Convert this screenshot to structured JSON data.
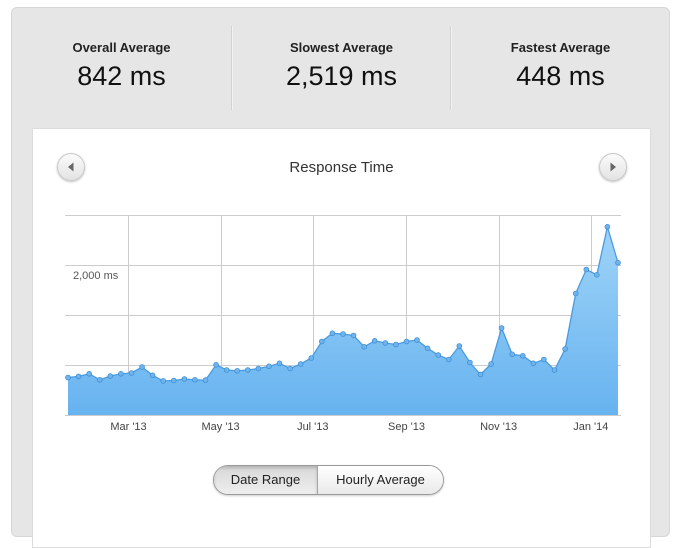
{
  "stats": [
    {
      "label": "Overall Average",
      "value": "842 ms"
    },
    {
      "label": "Slowest Average",
      "value": "2,519 ms"
    },
    {
      "label": "Fastest Average",
      "value": "448 ms"
    }
  ],
  "chart": {
    "prev_icon": "chevron-left-icon",
    "next_icon": "chevron-right-icon"
  },
  "toggle": {
    "options": [
      "Date Range",
      "Hourly Average"
    ],
    "selected": "Date Range"
  },
  "colors": {
    "fill_top": "#9fd3f7",
    "fill_bottom": "#67b3f0",
    "line": "#4a9be0",
    "grid": "#cccccc"
  },
  "chart_data": {
    "type": "area",
    "title": "Response Time",
    "ylabel": "",
    "xlabel": "",
    "y_tick_labels": [
      "2,000 ms"
    ],
    "ylim": [
      0,
      2667
    ],
    "y_gridlines": [
      0,
      667,
      1333,
      2000,
      2667
    ],
    "x_tick_labels": [
      "Mar '13",
      "May '13",
      "Jul '13",
      "Sep '13",
      "Nov '13",
      "Jan '14"
    ],
    "x_tick_dates": [
      "2013-03-01",
      "2013-05-01",
      "2013-07-01",
      "2013-09-01",
      "2013-11-01",
      "2014-01-01"
    ],
    "grid": true,
    "legend": "none",
    "series": [
      {
        "x": [
          "2013-01-20",
          "2013-01-27",
          "2013-02-03",
          "2013-02-10",
          "2013-02-17",
          "2013-02-24",
          "2013-03-03",
          "2013-03-10",
          "2013-03-17",
          "2013-03-24",
          "2013-03-31",
          "2013-04-07",
          "2013-04-14",
          "2013-04-21",
          "2013-04-28",
          "2013-05-05",
          "2013-05-12",
          "2013-05-19",
          "2013-05-26",
          "2013-06-02",
          "2013-06-09",
          "2013-06-16",
          "2013-06-23",
          "2013-06-30",
          "2013-07-07",
          "2013-07-14",
          "2013-07-21",
          "2013-07-28",
          "2013-08-04",
          "2013-08-11",
          "2013-08-18",
          "2013-08-25",
          "2013-09-01",
          "2013-09-08",
          "2013-09-15",
          "2013-09-22",
          "2013-09-29",
          "2013-10-06",
          "2013-10-13",
          "2013-10-20",
          "2013-10-27",
          "2013-11-03",
          "2013-11-10",
          "2013-11-17",
          "2013-11-24",
          "2013-12-01",
          "2013-12-08",
          "2013-12-15",
          "2013-12-22",
          "2013-12-29",
          "2014-01-05",
          "2014-01-12",
          "2014-01-19"
        ],
        "values": [
          500,
          515,
          550,
          470,
          520,
          550,
          560,
          640,
          530,
          455,
          460,
          480,
          470,
          465,
          670,
          600,
          590,
          600,
          620,
          650,
          690,
          620,
          680,
          760,
          980,
          1090,
          1080,
          1060,
          910,
          990,
          960,
          940,
          980,
          1000,
          890,
          800,
          740,
          920,
          700,
          540,
          680,
          1160,
          810,
          790,
          690,
          740,
          600,
          880,
          1620,
          1940,
          1870,
          2510,
          2030
        ]
      }
    ]
  }
}
